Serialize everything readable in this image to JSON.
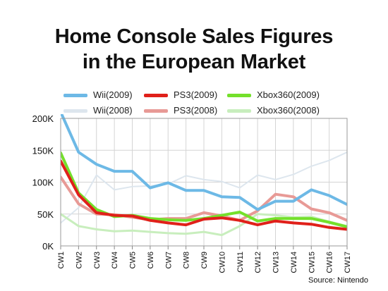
{
  "title_line1": "Home Console Sales Figures",
  "title_line2": "in the European Market",
  "source": "Source: Nintendo",
  "chart_data": {
    "type": "line",
    "title": "Home Console Sales Figures in the European Market",
    "categories": [
      "CW1",
      "CW2",
      "CW3",
      "CW4",
      "CW5",
      "CW6",
      "CW7",
      "CW8",
      "CW9",
      "CW10",
      "CW11",
      "CW12",
      "CW13",
      "CW14",
      "CW15",
      "CW16",
      "CW17"
    ],
    "yticks": [
      "0K",
      "50K",
      "100K",
      "150K",
      "200K"
    ],
    "ylim": [
      0,
      200000
    ],
    "grid": true,
    "legend_position": "top",
    "series": [
      {
        "name": "Wii(2009)",
        "color": "#6db9e6",
        "width": 4,
        "values": [
          210000,
          147000,
          128000,
          117000,
          117000,
          91000,
          99000,
          87000,
          87000,
          77000,
          76000,
          57000,
          70000,
          70000,
          88000,
          79000,
          65000
        ]
      },
      {
        "name": "PS3(2009)",
        "color": "#e0201a",
        "width": 4,
        "values": [
          133000,
          80000,
          52000,
          48000,
          47000,
          40000,
          36000,
          33000,
          42000,
          44000,
          40000,
          33000,
          39000,
          36000,
          34000,
          29000,
          26000
        ]
      },
      {
        "name": "Xbox360(2009)",
        "color": "#74e02b",
        "width": 4,
        "values": [
          146000,
          83000,
          57000,
          46000,
          48000,
          43000,
          41000,
          40000,
          43000,
          48000,
          53000,
          39000,
          43000,
          43000,
          43000,
          37000,
          30000
        ]
      },
      {
        "name": "Wii(2008)",
        "color": "#dde6ee",
        "width": 2,
        "values": [
          36000,
          60000,
          111000,
          88000,
          93000,
          94000,
          97000,
          110000,
          104000,
          101000,
          91000,
          111000,
          104000,
          112000,
          125000,
          134000,
          147000
        ]
      },
      {
        "name": "PS3(2008)",
        "color": "#e89a96",
        "width": 4,
        "values": [
          108000,
          66000,
          50000,
          49000,
          45000,
          41000,
          43000,
          43000,
          52000,
          47000,
          40000,
          55000,
          81000,
          77000,
          58000,
          52000,
          40000
        ]
      },
      {
        "name": "Xbox360(2008)",
        "color": "#c8eebd",
        "width": 3,
        "values": [
          50000,
          31000,
          26000,
          23000,
          24000,
          22000,
          20000,
          19000,
          22000,
          17000,
          31000,
          50000,
          48000,
          45000,
          46000,
          38000,
          31000
        ]
      }
    ]
  }
}
